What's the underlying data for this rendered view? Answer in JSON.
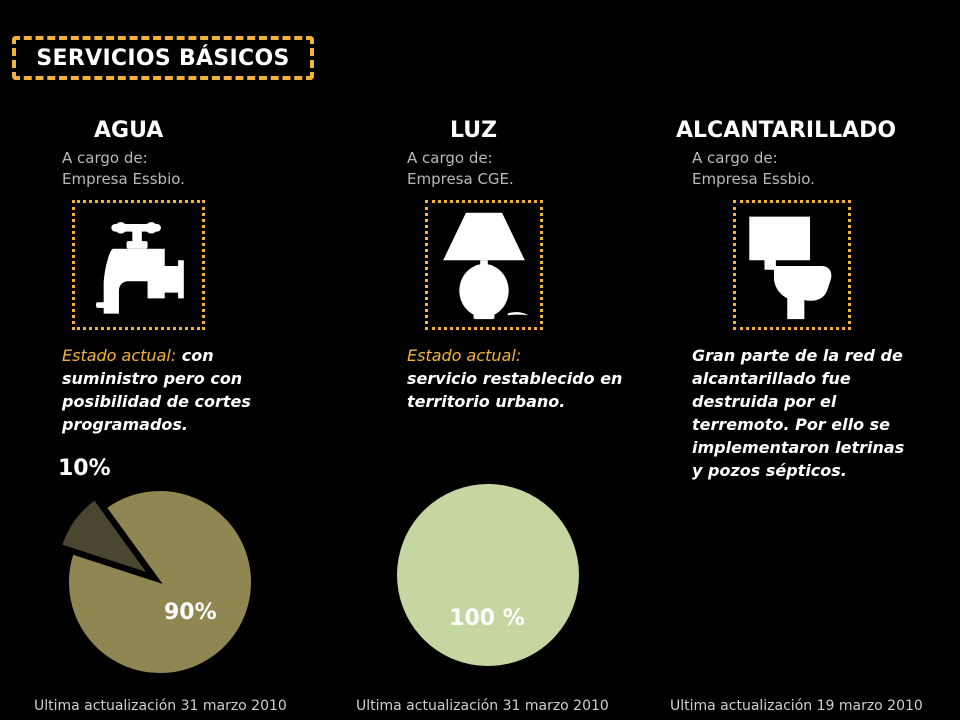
{
  "title": "SERVICIOS BÁSICOS",
  "columns": [
    {
      "name": "AGUA",
      "cargo_label": "A cargo de:",
      "cargo_value": "Empresa Essbio.",
      "icon": "faucet-icon",
      "status_label": "Estado actual:",
      "status_text": " con suministro pero con posibilidad de cortes programados.",
      "footer": "Ultima actualización 31 marzo 2010"
    },
    {
      "name": "LUZ",
      "cargo_label": "A cargo de:",
      "cargo_value": "Empresa CGE.",
      "icon": "lamp-icon",
      "status_label": "Estado actual:",
      "status_text": "servicio restablecido en territorio urbano.",
      "footer": "Ultima actualización 31 marzo 2010"
    },
    {
      "name": "ALCANTARILLADO",
      "cargo_label": "A cargo de:",
      "cargo_value": "Empresa Essbio.",
      "icon": "toilet-icon",
      "status_text": "Gran parte de la red de alcantarillado fue destruida por el terremoto. Por ello se implementaron letrinas y pozos sépticos.",
      "footer": "Ultima actualización 19 marzo 2010"
    }
  ],
  "chart_data": [
    {
      "type": "pie",
      "title": "AGUA",
      "values": [
        90,
        10
      ],
      "labels": [
        "90%",
        "10%"
      ],
      "colors": [
        "#8f8651",
        "#4b4630"
      ],
      "exploded": [
        false,
        true
      ]
    },
    {
      "type": "pie",
      "title": "LUZ",
      "values": [
        100
      ],
      "labels": [
        "100 %"
      ],
      "colors": [
        "#c5d6a0"
      ]
    }
  ]
}
